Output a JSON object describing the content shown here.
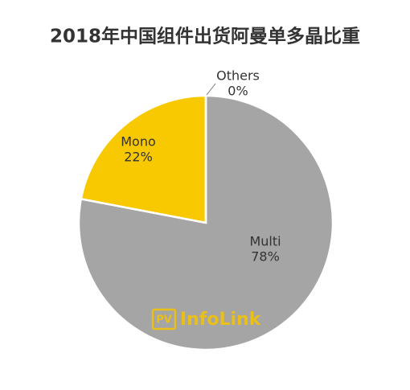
{
  "chart_data": {
    "type": "pie",
    "title": "2018年中国组件出货阿曼单多晶比重",
    "categories": [
      "Multi",
      "Mono",
      "Others"
    ],
    "values": [
      78,
      22,
      0
    ],
    "value_labels": [
      "78%",
      "22%",
      "0%"
    ],
    "colors": [
      "#a5a5a5",
      "#f8c800",
      "#5b9bd5"
    ],
    "watermark": {
      "badge": "PV",
      "text": "InfoLink"
    }
  }
}
